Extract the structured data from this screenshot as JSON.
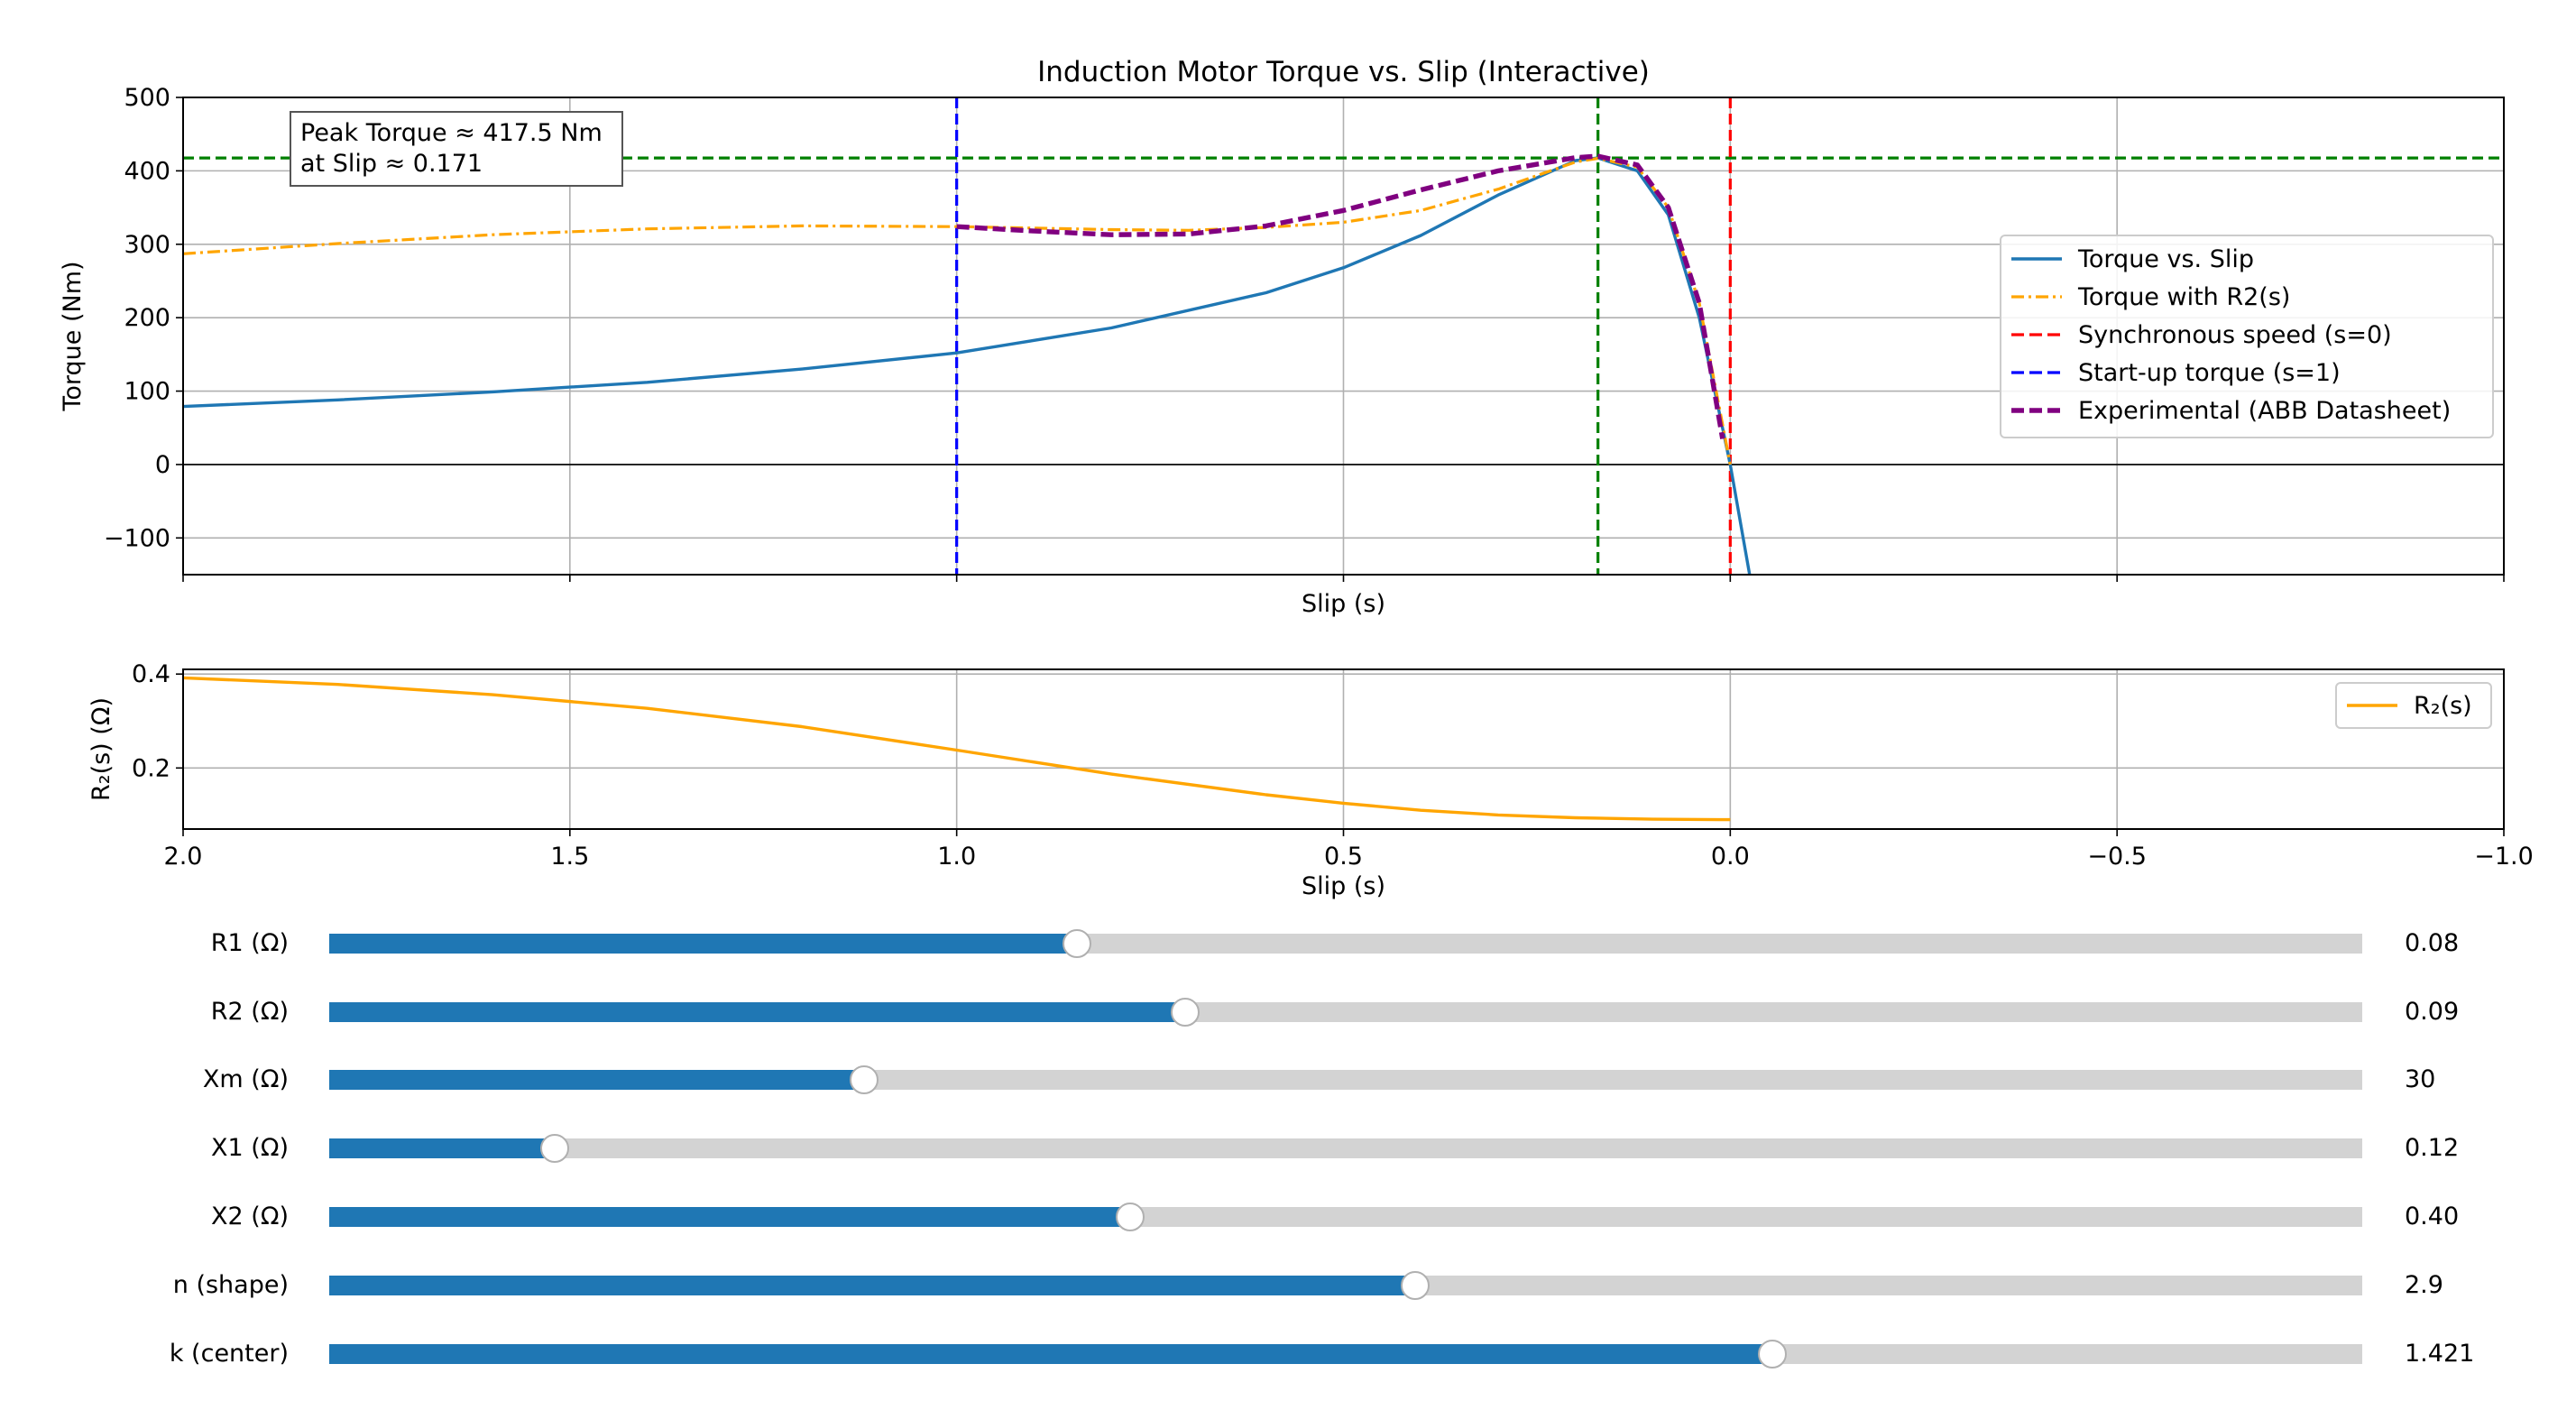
{
  "chart_data": [
    {
      "type": "line",
      "title": "Induction Motor Torque vs. Slip (Interactive)",
      "xlabel": "Slip (s)",
      "ylabel": "Torque (Nm)",
      "xlim": [
        2.0,
        -1.0
      ],
      "ylim": [
        -150,
        500
      ],
      "yticks": [
        -100,
        0,
        100,
        200,
        300,
        400,
        500
      ],
      "ytick_labels": [
        "−100",
        "0",
        "100",
        "200",
        "300",
        "400",
        "500"
      ],
      "xticks": [
        2.0,
        1.5,
        1.0,
        0.5,
        0.0,
        -0.5,
        -1.0
      ],
      "xtick_labels_shown": false,
      "grid": true,
      "legend_position": "center-right",
      "annotation": {
        "lines": [
          "Peak Torque ≈ 417.5 Nm",
          "at Slip ≈ 0.171"
        ]
      },
      "reference_lines": [
        {
          "orientation": "horizontal",
          "value": 417.5,
          "color": "#008000"
        },
        {
          "orientation": "horizontal",
          "value": 0,
          "color": "#000000"
        },
        {
          "orientation": "vertical",
          "value": 0.171,
          "color": "#008000"
        },
        {
          "orientation": "vertical",
          "value": 0.0,
          "color": "#ff0000"
        },
        {
          "orientation": "vertical",
          "value": 1.0,
          "color": "#0000ff"
        }
      ],
      "series": [
        {
          "name": "Torque vs. Slip",
          "style": "solid",
          "color": "#1f77b4",
          "points": [
            [
              2.0,
              79
            ],
            [
              1.8,
              88
            ],
            [
              1.6,
              99
            ],
            [
              1.4,
              112
            ],
            [
              1.2,
              130
            ],
            [
              1.0,
              152
            ],
            [
              0.8,
              186
            ],
            [
              0.6,
              234
            ],
            [
              0.5,
              268
            ],
            [
              0.4,
              312
            ],
            [
              0.3,
              367
            ],
            [
              0.2,
              414
            ],
            [
              0.171,
              417.5
            ],
            [
              0.12,
              400
            ],
            [
              0.08,
              340
            ],
            [
              0.04,
              200
            ],
            [
              0.0,
              0
            ],
            [
              -0.025,
              -150
            ]
          ]
        },
        {
          "name": "Torque with R2(s)",
          "style": "dashdot",
          "color": "#ffa500",
          "points": [
            [
              2.0,
              287
            ],
            [
              1.8,
              301
            ],
            [
              1.6,
              313
            ],
            [
              1.4,
              321
            ],
            [
              1.2,
              325
            ],
            [
              1.0,
              324
            ],
            [
              0.8,
              320
            ],
            [
              0.7,
              319
            ],
            [
              0.6,
              323
            ],
            [
              0.5,
              330
            ],
            [
              0.4,
              346
            ],
            [
              0.3,
              375
            ],
            [
              0.2,
              412
            ],
            [
              0.171,
              417
            ],
            [
              0.12,
              405
            ],
            [
              0.08,
              350
            ],
            [
              0.04,
              220
            ],
            [
              0.0,
              0
            ]
          ]
        },
        {
          "name": "Synchronous speed (s=0)",
          "style": "dashed",
          "color": "#ff0000",
          "points": []
        },
        {
          "name": "Start-up torque (s=1)",
          "style": "dashed",
          "color": "#0000ff",
          "points": []
        },
        {
          "name": "Experimental (ABB Datasheet)",
          "style": "dashed",
          "color": "#800080",
          "points": [
            [
              1.0,
              324
            ],
            [
              0.9,
              318
            ],
            [
              0.8,
              313
            ],
            [
              0.7,
              314
            ],
            [
              0.6,
              325
            ],
            [
              0.5,
              346
            ],
            [
              0.4,
              374
            ],
            [
              0.3,
              400
            ],
            [
              0.2,
              418
            ],
            [
              0.171,
              420
            ],
            [
              0.12,
              408
            ],
            [
              0.08,
              350
            ],
            [
              0.04,
              220
            ],
            [
              0.01,
              35
            ]
          ]
        }
      ]
    },
    {
      "type": "line",
      "xlabel": "Slip (s)",
      "ylabel": "R₂(s) (Ω)",
      "xlim": [
        2.0,
        -1.0
      ],
      "ylim": [
        0.07,
        0.41
      ],
      "yticks": [
        0.2,
        0.4
      ],
      "ytick_labels": [
        "0.2",
        "0.4"
      ],
      "xticks": [
        2.0,
        1.5,
        1.0,
        0.5,
        0.0,
        -0.5,
        -1.0
      ],
      "xtick_labels": [
        "2.0",
        "1.5",
        "1.0",
        "0.5",
        "0.0",
        "−0.5",
        "−1.0"
      ],
      "grid": true,
      "legend_position": "upper-right",
      "series": [
        {
          "name": "R₂(s)",
          "style": "solid",
          "color": "#ffa500",
          "points": [
            [
              2.0,
              0.392
            ],
            [
              1.8,
              0.378
            ],
            [
              1.6,
              0.356
            ],
            [
              1.4,
              0.327
            ],
            [
              1.2,
              0.288
            ],
            [
              1.0,
              0.238
            ],
            [
              0.8,
              0.187
            ],
            [
              0.6,
              0.143
            ],
            [
              0.5,
              0.125
            ],
            [
              0.4,
              0.11
            ],
            [
              0.3,
              0.1
            ],
            [
              0.2,
              0.094
            ],
            [
              0.1,
              0.091
            ],
            [
              0.0,
              0.09
            ]
          ]
        }
      ]
    }
  ],
  "sliders": [
    {
      "label": "R1 (Ω)",
      "value_text": "0.08",
      "fill_fraction": 0.368
    },
    {
      "label": "R2 (Ω)",
      "value_text": "0.09",
      "fill_fraction": 0.421
    },
    {
      "label": "Xm (Ω)",
      "value_text": "30",
      "fill_fraction": 0.263
    },
    {
      "label": "X1 (Ω)",
      "value_text": "0.12",
      "fill_fraction": 0.111
    },
    {
      "label": "X2 (Ω)",
      "value_text": "0.40",
      "fill_fraction": 0.394
    },
    {
      "label": "n (shape)",
      "value_text": "2.9",
      "fill_fraction": 0.534
    },
    {
      "label": "k (center)",
      "value_text": "1.421",
      "fill_fraction": 0.71
    }
  ]
}
